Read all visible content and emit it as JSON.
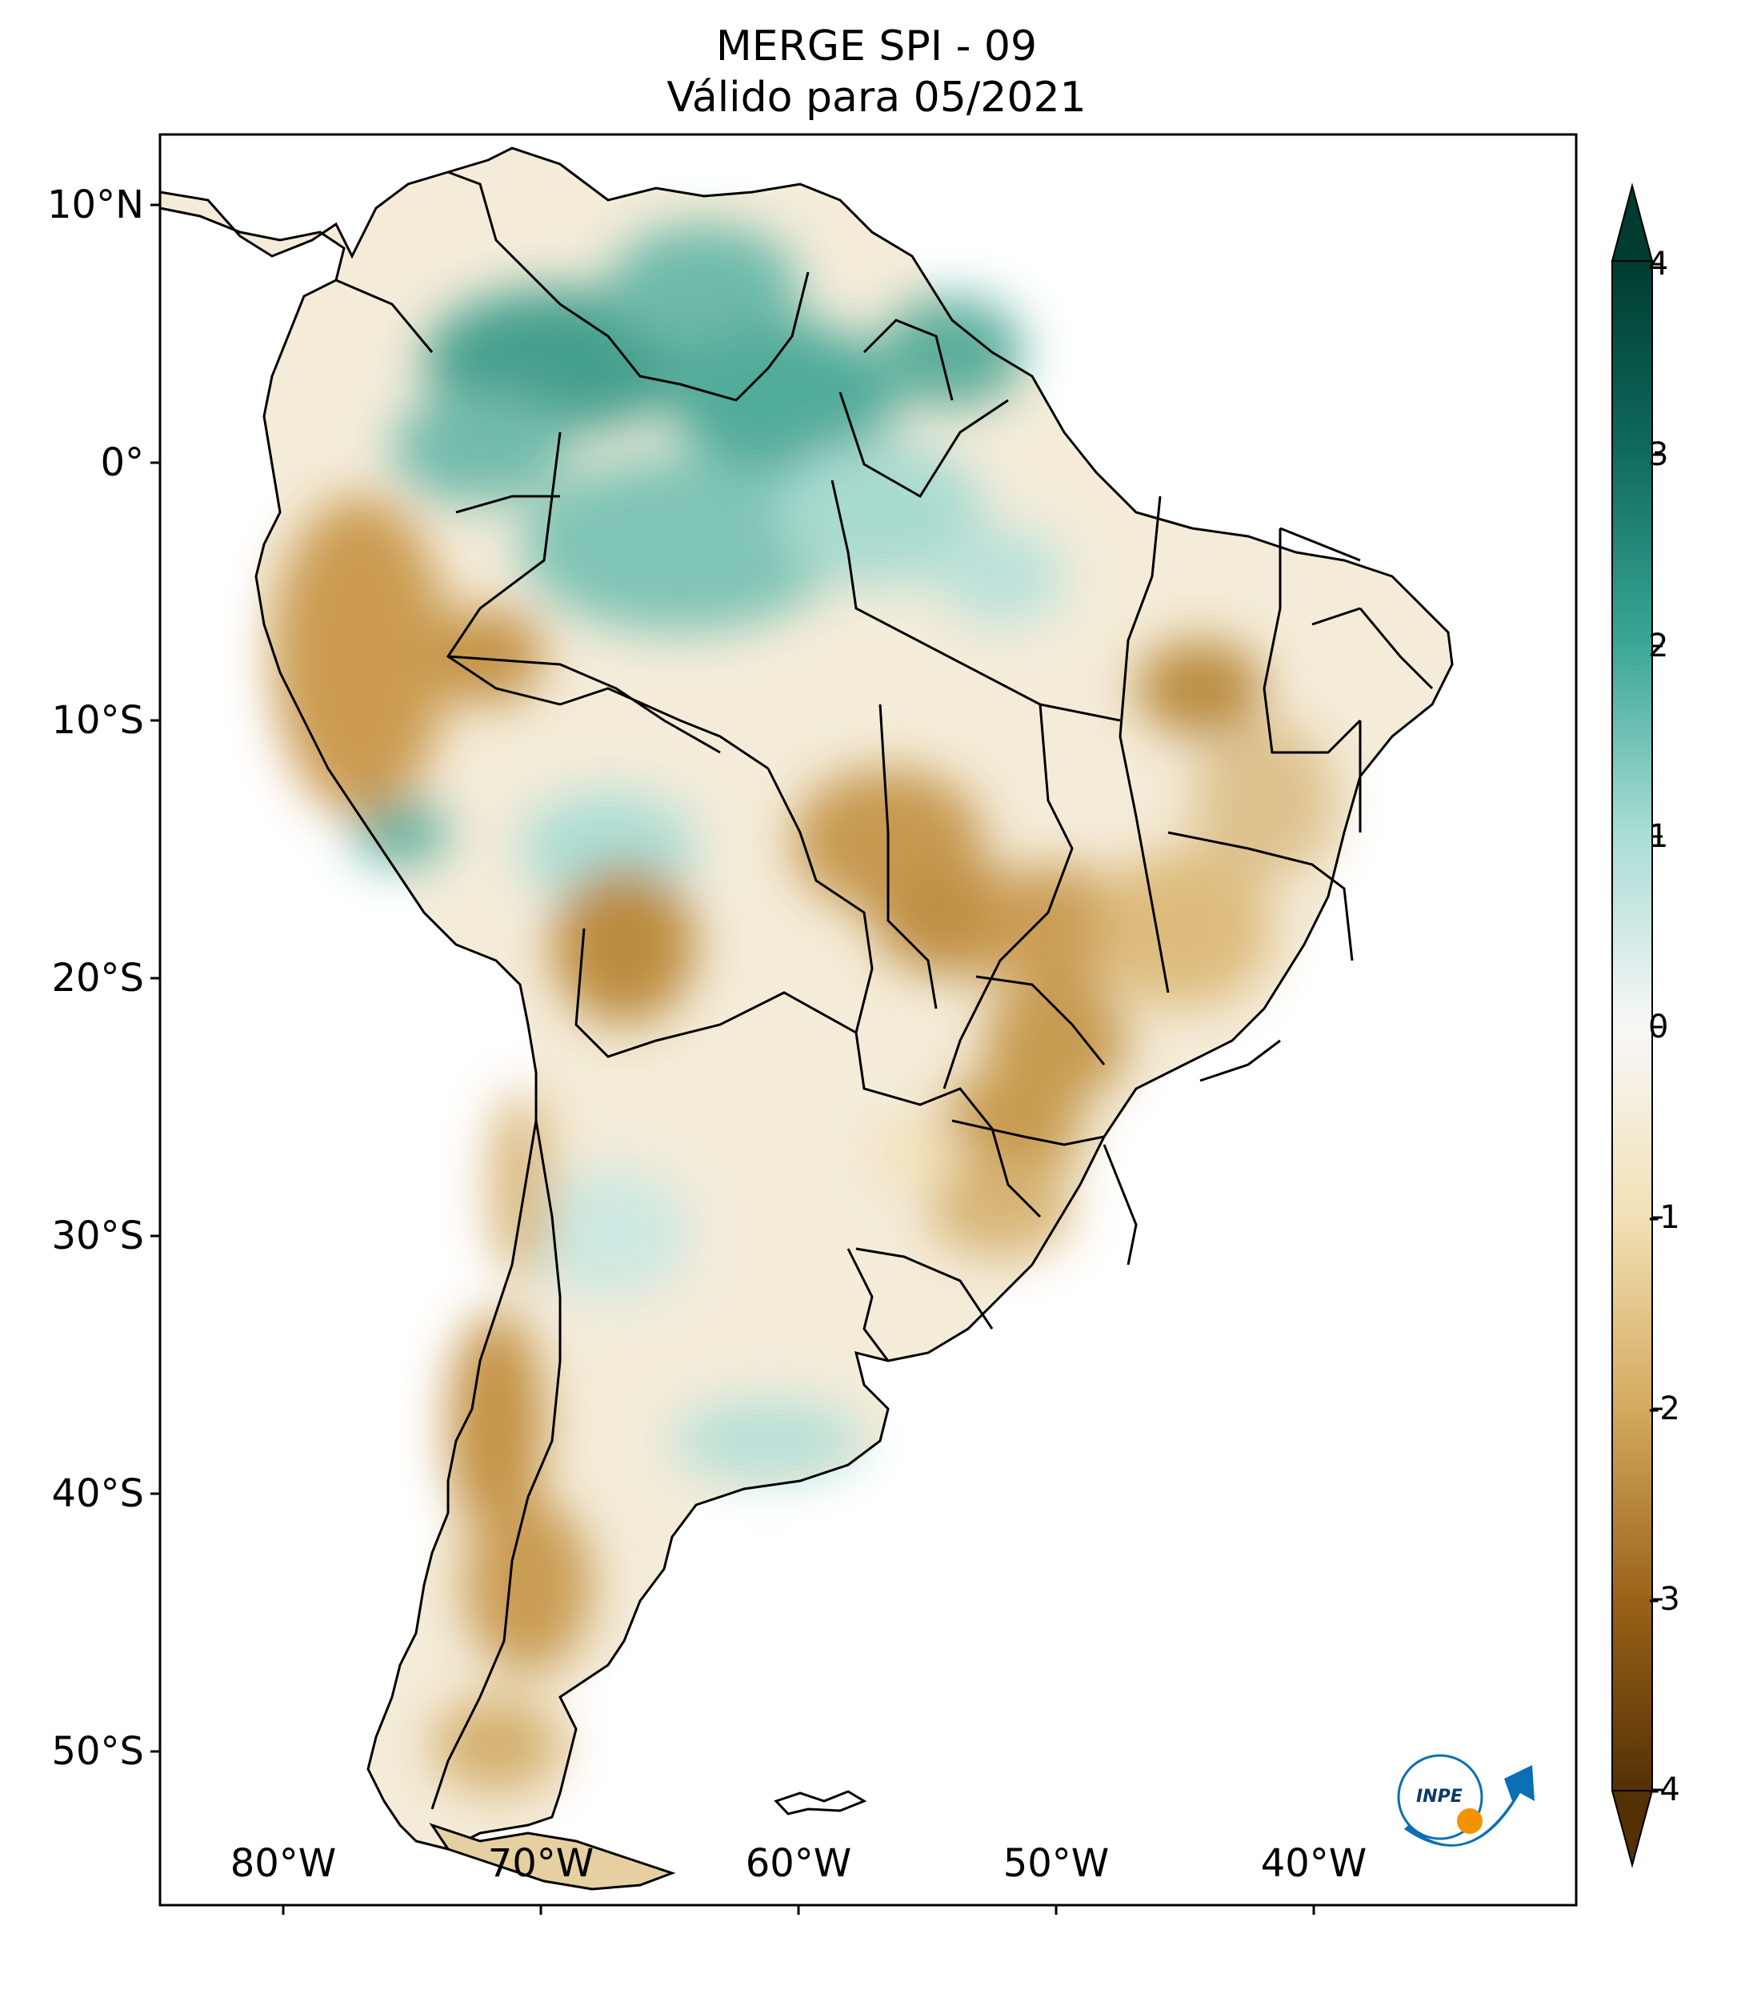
{
  "title": {
    "line1": "MERGE   SPI - 09",
    "line2": "Válido para 05/2021"
  },
  "map": {
    "lat_labels": [
      "10°N",
      "0°",
      "10°S",
      "20°S",
      "30°S",
      "40°S",
      "50°S"
    ],
    "lon_labels": [
      "80°W",
      "70°W",
      "60°W",
      "50°W",
      "40°W"
    ]
  },
  "colorbar": {
    "ticks": [
      "4",
      "3",
      "2",
      "1",
      "0",
      "-1",
      "-2",
      "-3",
      "-4"
    ],
    "colors": {
      "4": "#003c30",
      "3": "#0f6b5e",
      "2": "#3aa796",
      "1": "#a9ddd5",
      "0": "#f7f7f7",
      "-1": "#f2e1b6",
      "-2": "#d4aa5e",
      "-3": "#9a6318",
      "-4": "#543005"
    }
  },
  "logo": {
    "text": "INPE",
    "orange": "#f39200",
    "blue": "#0a6fb4"
  }
}
